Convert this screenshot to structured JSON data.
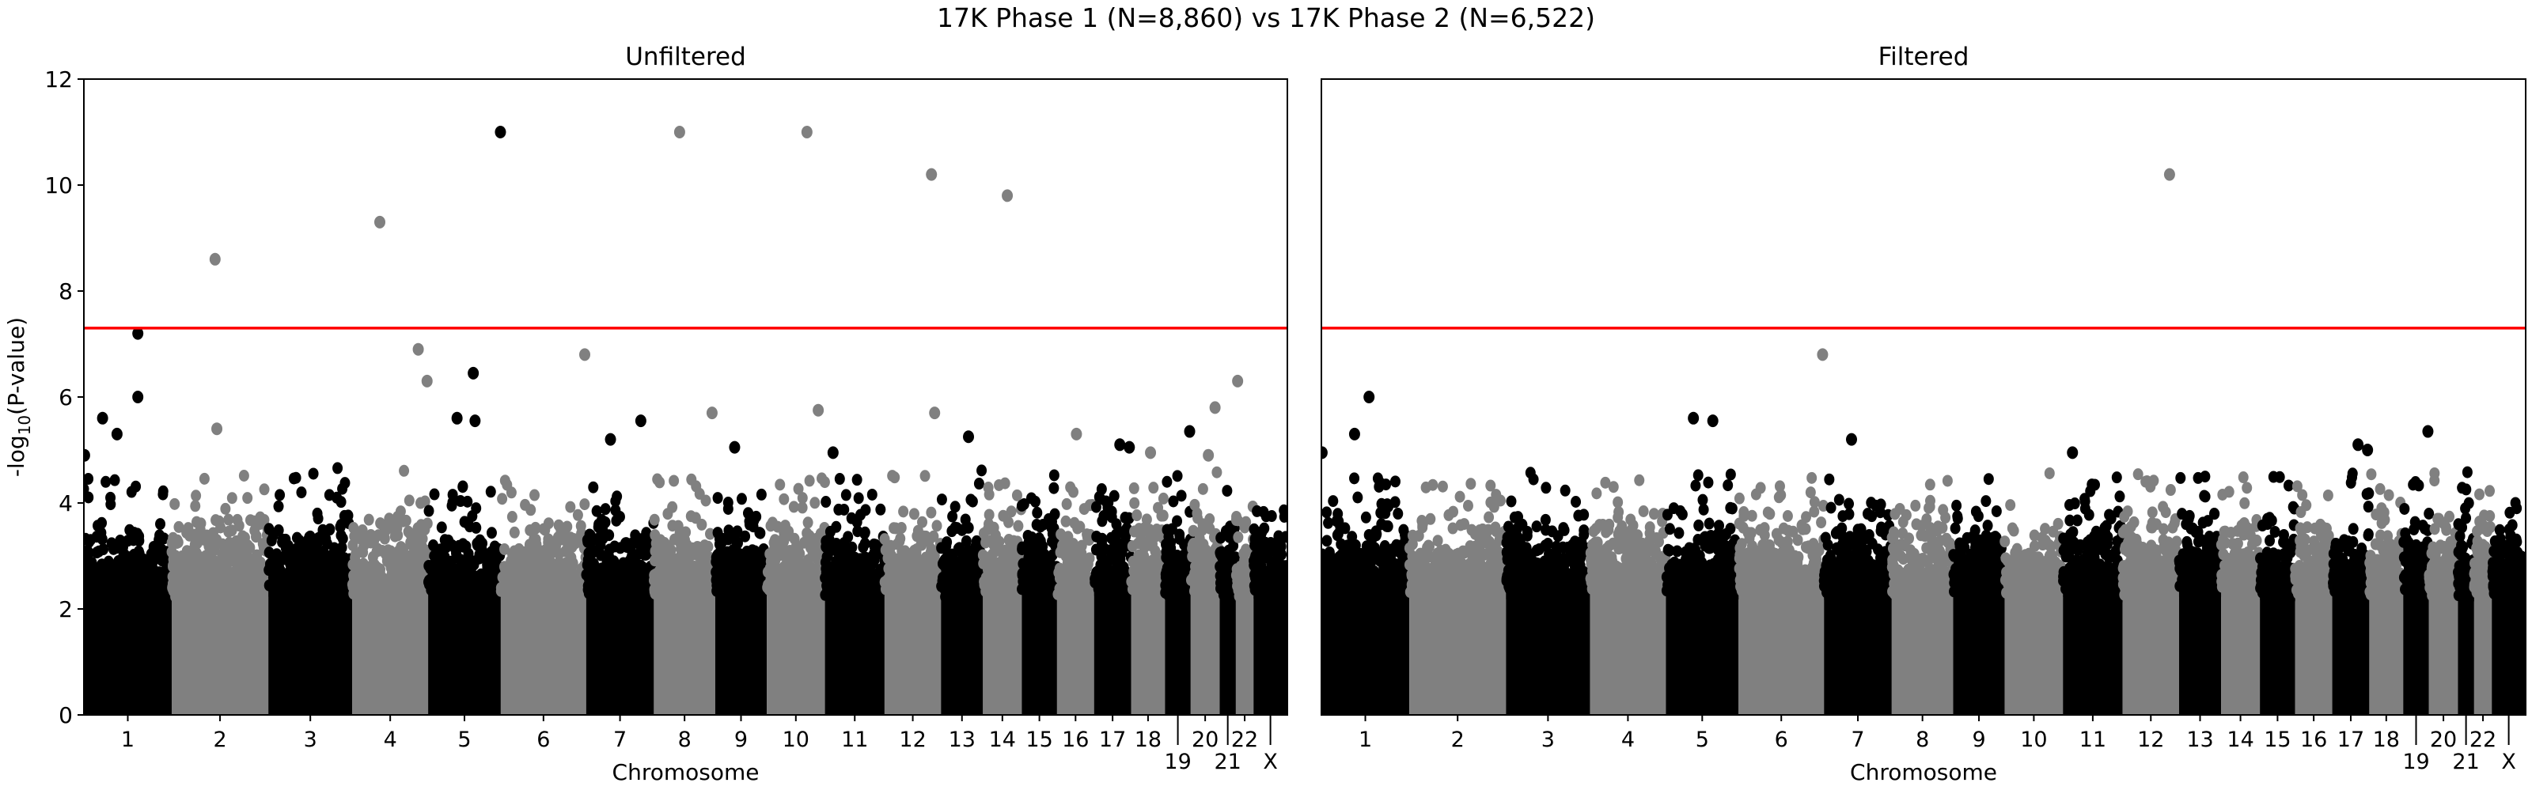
{
  "chart_data": {
    "type": "scatter",
    "title": "17K Phase 1 (N=8,860) vs 17K Phase 2 (N=6,522)",
    "xlabel": "Chromosome",
    "ylabel": {
      "prefix": "-log",
      "sub": "10",
      "suffix": "(P-value)"
    },
    "ylim": [
      0,
      12
    ],
    "yticks": [
      "0",
      "2",
      "4",
      "6",
      "8",
      "10",
      "12"
    ],
    "grid": false,
    "significance_line": {
      "y": 7.3,
      "color": "#ff0000"
    },
    "colors": {
      "odd": "#000000",
      "even": "#808080"
    },
    "chromosomes": [
      "1",
      "2",
      "3",
      "4",
      "5",
      "6",
      "7",
      "8",
      "9",
      "10",
      "11",
      "12",
      "13",
      "14",
      "15",
      "16",
      "17",
      "18",
      "19",
      "20",
      "21",
      "22",
      "X"
    ],
    "chromosome_span_mb": [
      249,
      274,
      238,
      215,
      206,
      242,
      192,
      174,
      146,
      165,
      169,
      160,
      119,
      110,
      100,
      105,
      105,
      96,
      73,
      82,
      46,
      50,
      96
    ],
    "background_min_y": 2.6,
    "panels": [
      {
        "title": "Unfiltered",
        "points": [
          [
            "1",
            2,
            4.9
          ],
          [
            "1",
            53,
            5.6
          ],
          [
            "1",
            94,
            5.3
          ],
          [
            "1",
            153,
            7.2
          ],
          [
            "1",
            153,
            6.0
          ],
          [
            "2",
            123,
            8.6
          ],
          [
            "2",
            128,
            5.4
          ],
          [
            "4",
            78,
            9.3
          ],
          [
            "4",
            187,
            6.9
          ],
          [
            "4",
            212,
            6.3
          ],
          [
            "5",
            205,
            11.0
          ],
          [
            "5",
            128,
            6.45
          ],
          [
            "5",
            82,
            5.6
          ],
          [
            "5",
            133,
            5.55
          ],
          [
            "6",
            238,
            6.8
          ],
          [
            "7",
            69,
            5.2
          ],
          [
            "7",
            155,
            5.55
          ],
          [
            "8",
            73,
            11.0
          ],
          [
            "8",
            165,
            5.7
          ],
          [
            "9",
            55,
            5.05
          ],
          [
            "10",
            114,
            11.0
          ],
          [
            "10",
            146,
            5.75
          ],
          [
            "11",
            23,
            4.95
          ],
          [
            "12",
            133,
            10.2
          ],
          [
            "12",
            142,
            5.7
          ],
          [
            "13",
            78,
            5.25
          ],
          [
            "14",
            69,
            9.8
          ],
          [
            "16",
            55,
            5.3
          ],
          [
            "17",
            73,
            5.1
          ],
          [
            "17",
            100,
            5.05
          ],
          [
            "18",
            55,
            4.95
          ],
          [
            "19",
            70,
            5.35
          ],
          [
            "20",
            69,
            5.8
          ],
          [
            "20",
            50,
            4.9
          ],
          [
            "22",
            5,
            6.3
          ]
        ]
      },
      {
        "title": "Filtered",
        "points": [
          [
            "1",
            135,
            6.0
          ],
          [
            "1",
            94,
            5.3
          ],
          [
            "1",
            2,
            4.95
          ],
          [
            "5",
            78,
            5.6
          ],
          [
            "5",
            133,
            5.55
          ],
          [
            "6",
            238,
            6.8
          ],
          [
            "7",
            78,
            5.2
          ],
          [
            "11",
            27,
            4.95
          ],
          [
            "12",
            133,
            10.2
          ],
          [
            "17",
            73,
            5.1
          ],
          [
            "17",
            100,
            5.0
          ],
          [
            "19",
            70,
            5.35
          ]
        ]
      }
    ]
  }
}
